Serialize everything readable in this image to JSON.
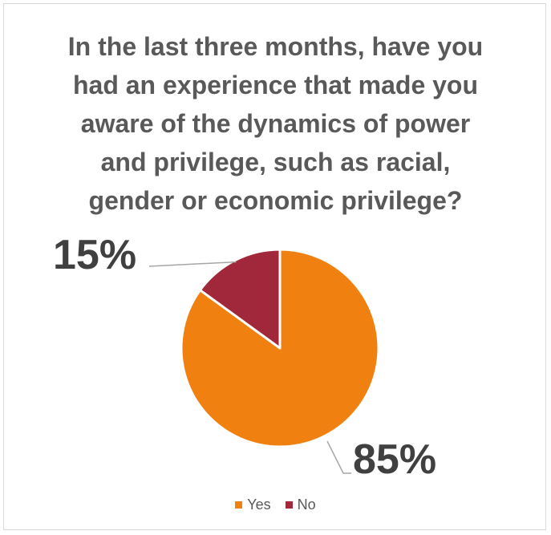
{
  "chart_data": {
    "type": "pie",
    "title_lines": [
      "In the last three months, have you",
      "had an experience that made you",
      "aware of the dynamics of power",
      "and privilege, such as racial,",
      "gender or economic privilege?"
    ],
    "slices": [
      {
        "name": "Yes",
        "value": 85,
        "label": "85%",
        "color": "#F08010"
      },
      {
        "name": "No",
        "value": 15,
        "label": "15%",
        "color": "#A0283A"
      }
    ],
    "legend_position": "bottom",
    "leader_line_color": "#a6a6a6"
  }
}
